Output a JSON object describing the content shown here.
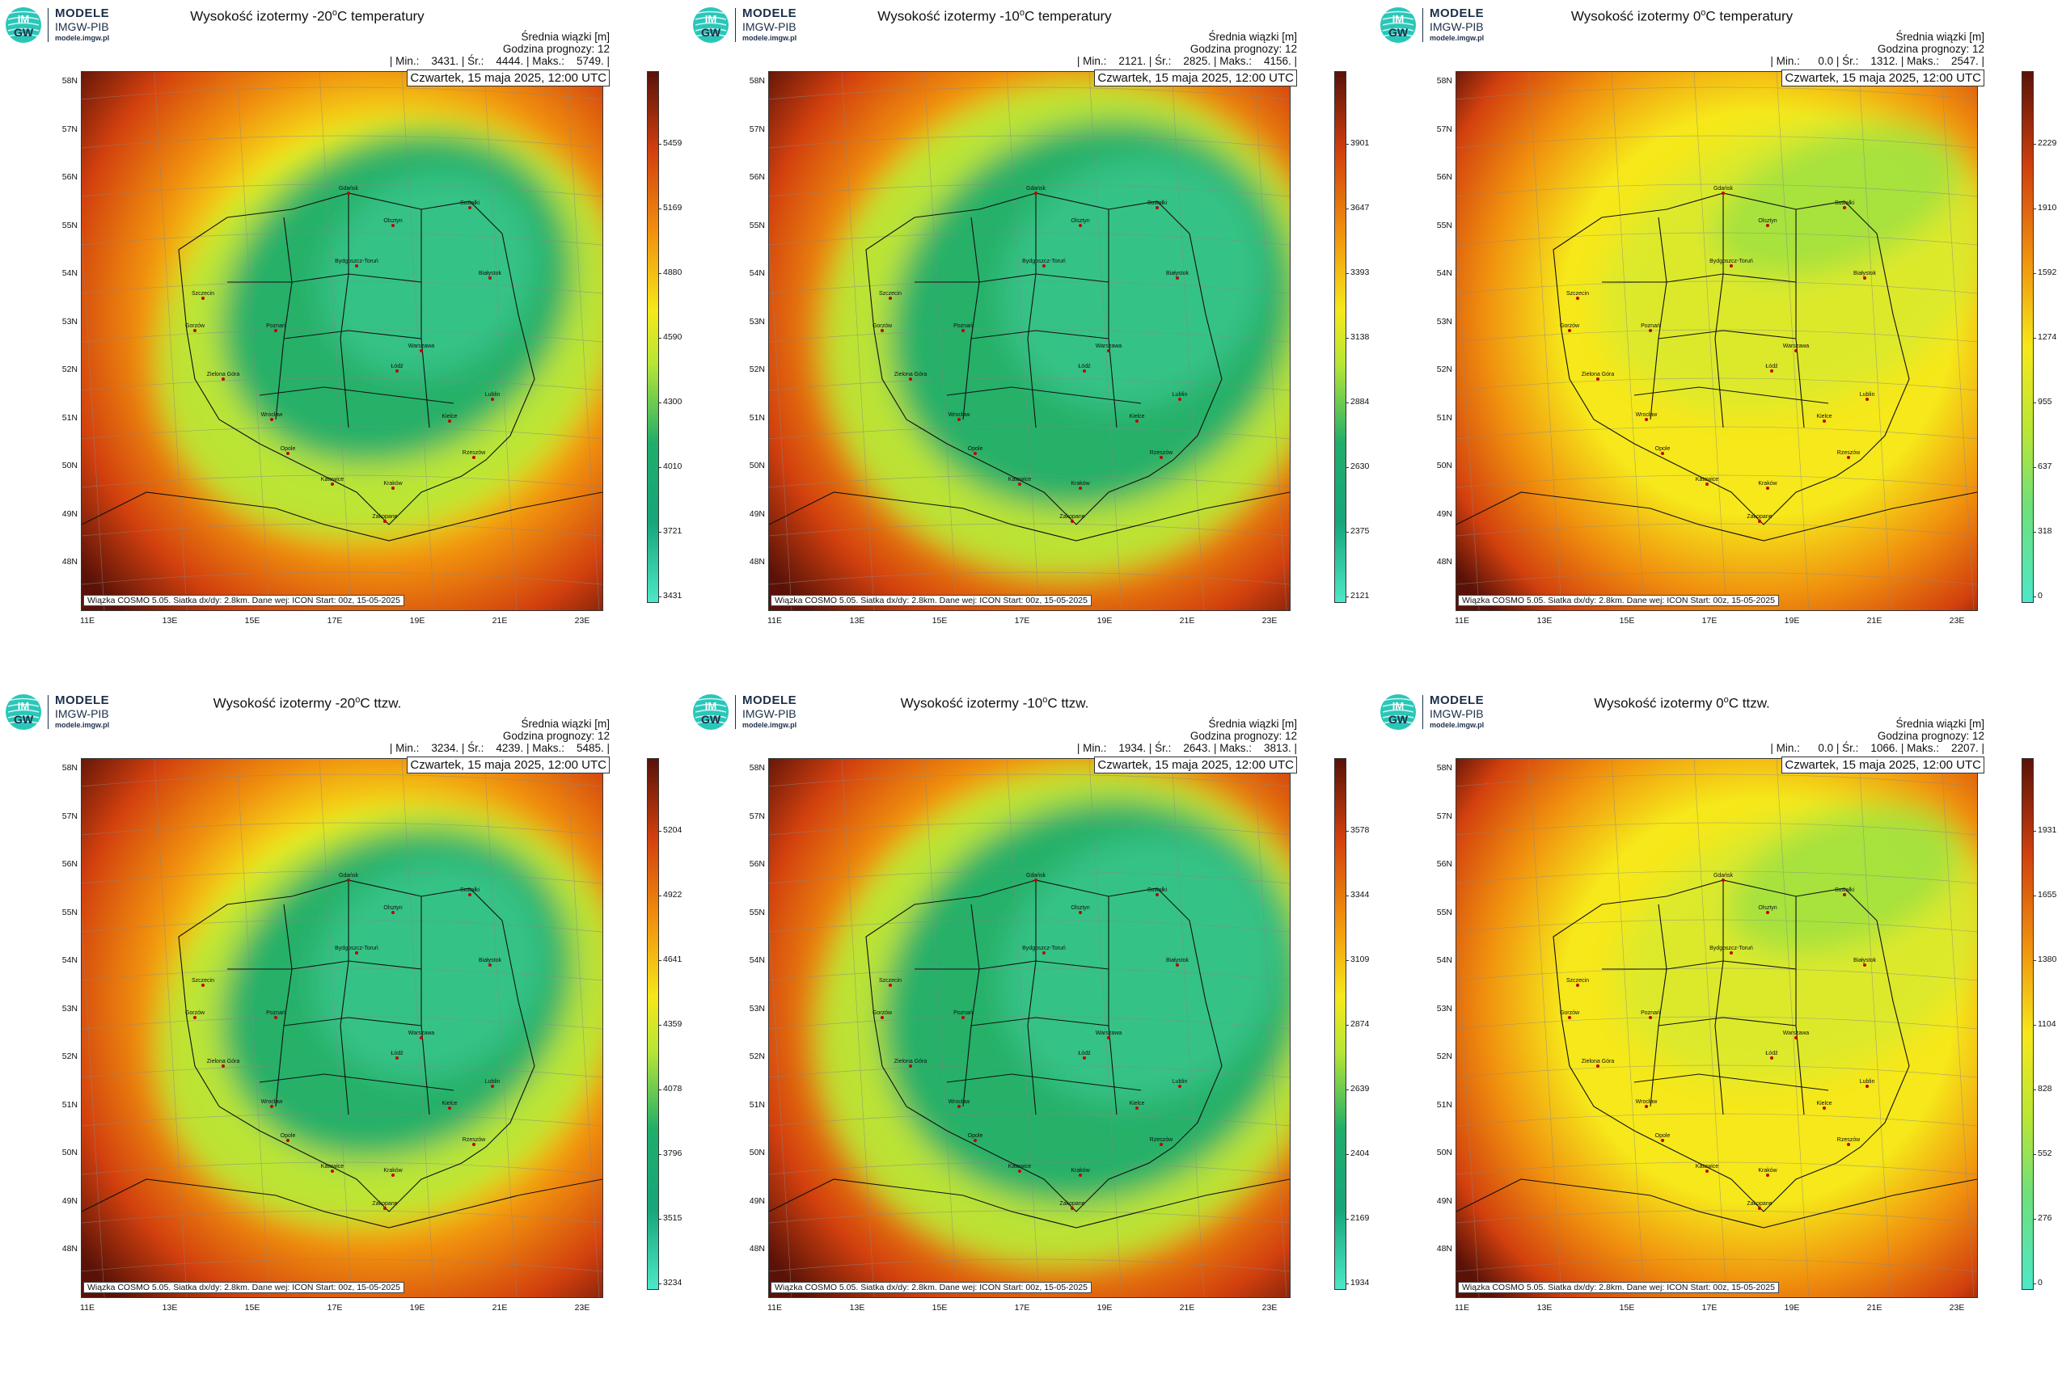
{
  "brand": {
    "line1": "MODELE",
    "line2": "IMGW-PIB",
    "line3": "modele.imgw.pl",
    "badge_top": "IM",
    "badge_bottom": "GW"
  },
  "common": {
    "beam_label": "Średnia wiązki [m]",
    "forecast_label": "Godzina prognozy: 12",
    "date": "Czwartek, 15 maja 2025, 12:00 UTC",
    "footer": "Wiązka COSMO 5.05. Siatka dx/dy: 2.8km. Dane wej: ICON Start: 00z, 15-05-2025",
    "lat_labels": [
      "58N",
      "57N",
      "56N",
      "55N",
      "54N",
      "53N",
      "52N",
      "51N",
      "50N",
      "49N",
      "48N"
    ],
    "lon_labels": [
      "11E",
      "13E",
      "15E",
      "17E",
      "19E",
      "21E",
      "23E"
    ]
  },
  "cities": [
    "Gdańsk",
    "Olsztyn",
    "Suwałki",
    "Szczecin",
    "Białystok",
    "Bydgoszcz-Toruń",
    "Gorzów",
    "Poznań",
    "Warszawa",
    "Zielona Góra",
    "Łódź",
    "Lublin",
    "Wrocław",
    "Kielce",
    "Opole",
    "Rzeszów",
    "Katowice",
    "Kraków",
    "Zakopane"
  ],
  "panels": [
    {
      "title_pre": "Wysokość izotermy -20",
      "title_sup": "o",
      "title_post": "C temperatury",
      "stats": "| Min.:    3431. | Śr.:    4444. | Maks.:    5749. |",
      "cb_labels": [
        "5459",
        "5169",
        "4880",
        "4590",
        "4300",
        "4010",
        "3721",
        "3431"
      ],
      "values": {
        "min": 3431,
        "mean": 4444,
        "max": 5749
      }
    },
    {
      "title_pre": "Wysokość izotermy -10",
      "title_sup": "o",
      "title_post": "C temperatury",
      "stats": "| Min.:    2121. | Śr.:    2825. | Maks.:    4156. |",
      "cb_labels": [
        "3901",
        "3647",
        "3393",
        "3138",
        "2884",
        "2630",
        "2375",
        "2121"
      ],
      "values": {
        "min": 2121,
        "mean": 2825,
        "max": 4156
      }
    },
    {
      "title_pre": "Wysokość izotermy 0",
      "title_sup": "o",
      "title_post": "C temperatury",
      "stats": "| Min.:      0.0 | Śr.:    1312. | Maks.:    2547. |",
      "cb_labels": [
        "2229",
        "1910",
        "1592",
        "1274",
        "955",
        "637",
        "318",
        "0"
      ],
      "values": {
        "min": 0.0,
        "mean": 1312,
        "max": 2547
      }
    },
    {
      "title_pre": "Wysokość izotermy -20",
      "title_sup": "o",
      "title_post": "C ttzw.",
      "stats": "| Min.:    3234. | Śr.:    4239. | Maks.:    5485. |",
      "cb_labels": [
        "5204",
        "4922",
        "4641",
        "4359",
        "4078",
        "3796",
        "3515",
        "3234"
      ],
      "values": {
        "min": 3234,
        "mean": 4239,
        "max": 5485
      }
    },
    {
      "title_pre": "Wysokość izotermy -10",
      "title_sup": "o",
      "title_post": "C ttzw.",
      "stats": "| Min.:    1934. | Śr.:    2643. | Maks.:    3813. |",
      "cb_labels": [
        "3578",
        "3344",
        "3109",
        "2874",
        "2639",
        "2404",
        "2169",
        "1934"
      ],
      "values": {
        "min": 1934,
        "mean": 2643,
        "max": 3813
      }
    },
    {
      "title_pre": "Wysokość izotermy 0",
      "title_sup": "o",
      "title_post": "C ttzw.",
      "stats": "| Min.:      0.0 | Śr.:    1066. | Maks.:    2207. |",
      "cb_labels": [
        "1931",
        "1655",
        "1380",
        "1104",
        "828",
        "552",
        "276",
        "0"
      ],
      "values": {
        "min": 0.0,
        "mean": 1066,
        "max": 2207
      }
    }
  ],
  "colors": {
    "low": "#4de8c8",
    "green": "#1fae6a",
    "lime": "#b8e636",
    "yellow": "#f6e81a",
    "orange": "#f0900e",
    "red": "#d2400e",
    "darkred": "#5a1208"
  }
}
